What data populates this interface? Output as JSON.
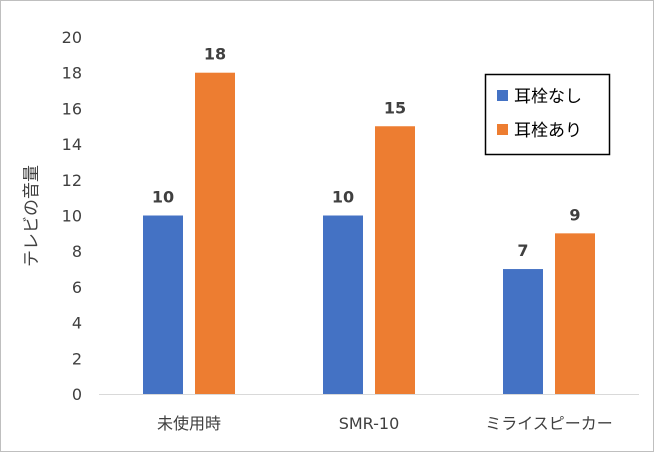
{
  "chart_data": {
    "type": "bar",
    "categories": [
      "未使用時",
      "SMR-10",
      "ミライスピーカー"
    ],
    "series": [
      {
        "name": "耳栓なし",
        "values": [
          10,
          10,
          7
        ],
        "color": "#4472C4"
      },
      {
        "name": "耳栓あり",
        "values": [
          18,
          15,
          9
        ],
        "color": "#ED7D31"
      }
    ],
    "title": "",
    "xlabel": "",
    "ylabel": "テレビの音量",
    "ylim": [
      0,
      20
    ],
    "yticks": [
      0,
      2,
      4,
      6,
      8,
      10,
      12,
      14,
      16,
      18,
      20
    ],
    "grid": false,
    "legend_position": "top-right",
    "data_labels": true
  }
}
